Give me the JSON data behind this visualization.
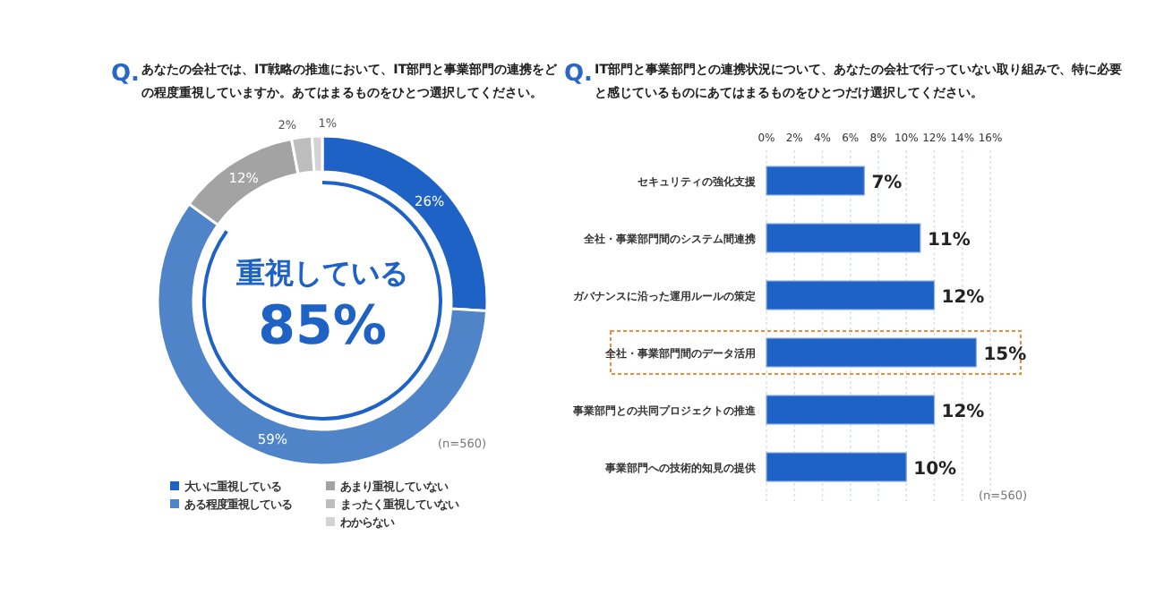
{
  "chart_data": [
    {
      "type": "donut",
      "title": "Q.あなたの会社では、IT戦略の推進において、IT部門と事業部門の連携をどの程度重視していますか。あてはまるものをひとつ選択してください。",
      "categories": [
        "大いに重視している",
        "ある程度重視している",
        "あまり重視していない",
        "まったく重視していない",
        "わからない"
      ],
      "values": [
        26,
        59,
        12,
        2,
        1
      ],
      "value_labels": [
        "26%",
        "59%",
        "12%",
        "2%",
        "1%"
      ],
      "colors": [
        "#1f62c6",
        "#4f84c9",
        "#a3a3a3",
        "#bdbdbd",
        "#d3d3d3"
      ],
      "legend": "bottom",
      "annotations": [
        "重視している",
        "85%",
        "(n=560)"
      ]
    },
    {
      "type": "bar",
      "orientation": "horizontal",
      "title": "Q.IT部門と事業部門との連携状況について、あなたの会社で行っていない取り組みで、特に必要と感じているものにあてはまるものをひとつだけ選択してください。",
      "categories": [
        "セキュリティの強化支援",
        "全社・事業部門間のシステム間連携",
        "ガバナンスに沿った運用ルールの策定",
        "全社・事業部門間のデータ活用",
        "事業部門との共同プロジェクトの推進",
        "事業部門への技術的知見の提供"
      ],
      "values": [
        7,
        11,
        12,
        15,
        12,
        10
      ],
      "value_labels": [
        "7%",
        "11%",
        "12%",
        "15%",
        "12%",
        "10%"
      ],
      "color": "#1f62c6",
      "xlim": [
        0,
        16
      ],
      "xticks": [
        {
          "value": 0,
          "label": "0%"
        },
        {
          "value": 2,
          "label": "2%"
        },
        {
          "value": 4,
          "label": "4%"
        },
        {
          "value": 6,
          "label": "6%"
        },
        {
          "value": 8,
          "label": "8%"
        },
        {
          "value": 10,
          "label": "10%"
        },
        {
          "value": 12,
          "label": "12%"
        },
        {
          "value": 14,
          "label": "14%"
        },
        {
          "value": 16,
          "label": "16%"
        }
      ],
      "grid": "x",
      "annotations": [
        "(n=560)"
      ]
    }
  ]
}
